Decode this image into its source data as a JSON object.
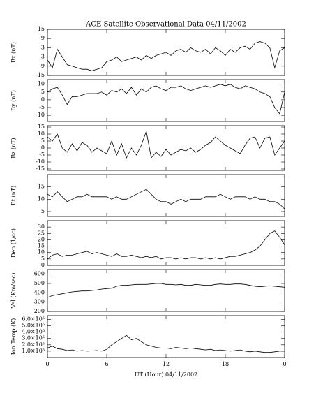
{
  "chart_data": [
    {
      "type": "line",
      "title": "ACE Satellite Observational Data  04/11/2002",
      "ylabel": "Bx (nT)",
      "x": [
        0,
        0.5,
        1,
        1.5,
        2,
        2.5,
        3,
        3.5,
        4,
        4.5,
        5,
        5.5,
        6,
        6.5,
        7,
        7.5,
        8,
        8.5,
        9,
        9.5,
        10,
        10.5,
        11,
        11.5,
        12,
        12.5,
        13,
        13.5,
        14,
        14.5,
        15,
        15.5,
        16,
        16.5,
        17,
        17.5,
        18,
        18.5,
        19,
        19.5,
        20,
        20.5,
        21,
        21.5,
        22,
        22.5,
        23,
        23.5,
        24
      ],
      "values": [
        -5,
        -10,
        2,
        -3,
        -8,
        -9,
        -10,
        -11,
        -11,
        -12,
        -11,
        -10,
        -6,
        -5,
        -3,
        -6,
        -5,
        -4,
        -3,
        -5,
        -2,
        -4,
        -2,
        -1,
        0,
        -2,
        1,
        2,
        0,
        3,
        1,
        0,
        2,
        -1,
        3,
        1,
        -2,
        2,
        0,
        3,
        4,
        2,
        6,
        7,
        6,
        3,
        -10,
        1,
        3
      ],
      "color": "#000000",
      "xlim": [
        0,
        24
      ],
      "ylim": [
        -15,
        15
      ],
      "yticks": [
        -15,
        -9,
        -3,
        3,
        9,
        15
      ]
    },
    {
      "type": "line",
      "ylabel": "By (nT)",
      "x": [
        0,
        0.5,
        1,
        1.5,
        2,
        2.5,
        3,
        3.5,
        4,
        4.5,
        5,
        5.5,
        6,
        6.5,
        7,
        7.5,
        8,
        8.5,
        9,
        9.5,
        10,
        10.5,
        11,
        11.5,
        12,
        12.5,
        13,
        13.5,
        14,
        14.5,
        15,
        15.5,
        16,
        16.5,
        17,
        17.5,
        18,
        18.5,
        19,
        19.5,
        20,
        20.5,
        21,
        21.5,
        22,
        22.5,
        23,
        23.5,
        24
      ],
      "values": [
        5,
        7,
        8,
        3,
        -3,
        2,
        2,
        3,
        4,
        4,
        4,
        5,
        3,
        6,
        5,
        7,
        4,
        8,
        3,
        7,
        5,
        8,
        9,
        7,
        6,
        8,
        8,
        9,
        7,
        6,
        7,
        8,
        9,
        8,
        9,
        10,
        9,
        10,
        8,
        7,
        9,
        8,
        7,
        5,
        4,
        2,
        -5,
        -9,
        5
      ],
      "color": "#000000",
      "xlim": [
        0,
        24
      ],
      "ylim": [
        -14,
        13
      ],
      "yticks": [
        -10,
        -5,
        0,
        5,
        10
      ]
    },
    {
      "type": "line",
      "ylabel": "Bz (nT)",
      "x": [
        0,
        0.5,
        1,
        1.5,
        2,
        2.5,
        3,
        3.5,
        4,
        4.5,
        5,
        5.5,
        6,
        6.5,
        7,
        7.5,
        8,
        8.5,
        9,
        9.5,
        10,
        10.5,
        11,
        11.5,
        12,
        12.5,
        13,
        13.5,
        14,
        14.5,
        15,
        15.5,
        16,
        16.5,
        17,
        17.5,
        18,
        18.5,
        19,
        19.5,
        20,
        20.5,
        21,
        21.5,
        22,
        22.5,
        23,
        23.5,
        24
      ],
      "values": [
        8,
        5,
        10,
        0,
        -3,
        3,
        -2,
        4,
        2,
        -3,
        0,
        -2,
        -4,
        5,
        -5,
        3,
        -7,
        0,
        -5,
        2,
        12,
        -7,
        -3,
        -6,
        -1,
        -5,
        -3,
        -1,
        -2,
        0,
        -3,
        -1,
        2,
        4,
        8,
        5,
        2,
        0,
        -2,
        -4,
        2,
        7,
        8,
        0,
        7,
        8,
        -5,
        0,
        5
      ],
      "color": "#000000",
      "xlim": [
        0,
        24
      ],
      "ylim": [
        -16,
        16
      ],
      "yticks": [
        -15,
        -10,
        -5,
        0,
        5,
        10,
        15
      ]
    },
    {
      "type": "line",
      "ylabel": "Bt (nT)",
      "x": [
        0,
        0.5,
        1,
        1.5,
        2,
        2.5,
        3,
        3.5,
        4,
        4.5,
        5,
        5.5,
        6,
        6.5,
        7,
        7.5,
        8,
        8.5,
        9,
        9.5,
        10,
        10.5,
        11,
        11.5,
        12,
        12.5,
        13,
        13.5,
        14,
        14.5,
        15,
        15.5,
        16,
        16.5,
        17,
        17.5,
        18,
        18.5,
        19,
        19.5,
        20,
        20.5,
        21,
        21.5,
        22,
        22.5,
        23,
        23.5,
        24
      ],
      "values": [
        12,
        11,
        13,
        11,
        9,
        10,
        11,
        11,
        12,
        11,
        11,
        11,
        11,
        10,
        11,
        10,
        10,
        11,
        12,
        13,
        14,
        12,
        10,
        9,
        9,
        8,
        9,
        10,
        9,
        10,
        10,
        10,
        11,
        11,
        11,
        12,
        11,
        10,
        11,
        11,
        11,
        10,
        11,
        10,
        10,
        9,
        9,
        8,
        6
      ],
      "color": "#000000",
      "xlim": [
        0,
        24
      ],
      "ylim": [
        3,
        20
      ],
      "yticks": [
        5,
        10,
        15
      ]
    },
    {
      "type": "line",
      "ylabel": "Den (1/cc)",
      "x": [
        0,
        0.5,
        1,
        1.5,
        2,
        2.5,
        3,
        3.5,
        4,
        4.5,
        5,
        5.5,
        6,
        6.5,
        7,
        7.5,
        8,
        8.5,
        9,
        9.5,
        10,
        10.5,
        11,
        11.5,
        12,
        12.5,
        13,
        13.5,
        14,
        14.5,
        15,
        15.5,
        16,
        16.5,
        17,
        17.5,
        18,
        18.5,
        19,
        19.5,
        20,
        20.5,
        21,
        21.5,
        22,
        22.5,
        23,
        23.5,
        24
      ],
      "values": [
        5,
        8,
        9,
        7,
        8,
        8,
        9,
        10,
        11,
        9,
        10,
        9,
        8,
        7,
        9,
        7,
        7,
        8,
        7,
        6,
        7,
        6,
        7,
        5,
        6,
        6,
        5,
        6,
        5,
        6,
        6,
        5,
        6,
        5,
        6,
        5,
        6,
        7,
        7,
        8,
        9,
        10,
        12,
        15,
        20,
        25,
        27,
        22,
        16
      ],
      "color": "#000000",
      "xlim": [
        0,
        24
      ],
      "ylim": [
        0,
        35
      ],
      "yticks": [
        0,
        5,
        10,
        15,
        20,
        25,
        30
      ]
    },
    {
      "type": "line",
      "ylabel": "Vel (Km/sec)",
      "x": [
        0,
        0.5,
        1,
        1.5,
        2,
        2.5,
        3,
        3.5,
        4,
        4.5,
        5,
        5.5,
        6,
        6.5,
        7,
        7.5,
        8,
        8.5,
        9,
        9.5,
        10,
        10.5,
        11,
        11.5,
        12,
        12.5,
        13,
        13.5,
        14,
        14.5,
        15,
        15.5,
        16,
        16.5,
        17,
        17.5,
        18,
        18.5,
        19,
        19.5,
        20,
        20.5,
        21,
        21.5,
        22,
        22.5,
        23,
        23.5,
        24
      ],
      "values": [
        350,
        370,
        380,
        390,
        400,
        410,
        415,
        420,
        420,
        425,
        430,
        440,
        445,
        450,
        470,
        480,
        480,
        485,
        490,
        490,
        490,
        495,
        500,
        500,
        490,
        490,
        485,
        490,
        480,
        480,
        490,
        485,
        480,
        480,
        490,
        495,
        490,
        490,
        495,
        495,
        490,
        480,
        470,
        465,
        470,
        475,
        470,
        465,
        460
      ],
      "color": "#000000",
      "xlim": [
        0,
        24
      ],
      "ylim": [
        200,
        650
      ],
      "yticks": [
        200,
        300,
        400,
        500,
        600
      ]
    },
    {
      "type": "line",
      "ylabel": "Ion Temp (K)",
      "xlabel": "UT (Hour)  04/11/2002",
      "x": [
        0,
        0.5,
        1,
        1.5,
        2,
        2.5,
        3,
        3.5,
        4,
        4.5,
        5,
        5.5,
        6,
        6.5,
        7,
        7.5,
        8,
        8.5,
        9,
        9.5,
        10,
        10.5,
        11,
        11.5,
        12,
        12.5,
        13,
        13.5,
        14,
        14.5,
        15,
        15.5,
        16,
        16.5,
        17,
        17.5,
        18,
        18.5,
        19,
        19.5,
        20,
        20.5,
        21,
        21.5,
        22,
        22.5,
        23,
        23.5,
        24
      ],
      "values": [
        150000,
        180000,
        140000,
        130000,
        110000,
        120000,
        100000,
        110000,
        100000,
        105000,
        110000,
        100000,
        130000,
        200000,
        250000,
        300000,
        350000,
        280000,
        300000,
        250000,
        200000,
        180000,
        160000,
        150000,
        150000,
        140000,
        160000,
        150000,
        140000,
        150000,
        140000,
        130000,
        120000,
        130000,
        110000,
        120000,
        110000,
        100000,
        110000,
        120000,
        100000,
        90000,
        100000,
        90000,
        80000,
        80000,
        90000,
        100000,
        100000
      ],
      "color": "#000000",
      "xlim": [
        0,
        24
      ],
      "ylim": [
        0,
        660000
      ],
      "yticks": [
        {
          "value": 100000,
          "label": "1.0×10⁵"
        },
        {
          "value": 200000,
          "label": "2.0×10⁵"
        },
        {
          "value": 300000,
          "label": "3.0×10⁵"
        },
        {
          "value": 400000,
          "label": "4.0×10⁵"
        },
        {
          "value": 500000,
          "label": "5.0×10⁵"
        },
        {
          "value": 600000,
          "label": "6.0×10⁵"
        }
      ],
      "xticks": [
        0,
        6,
        12,
        18,
        {
          "value": 24,
          "label": "0"
        }
      ]
    }
  ]
}
